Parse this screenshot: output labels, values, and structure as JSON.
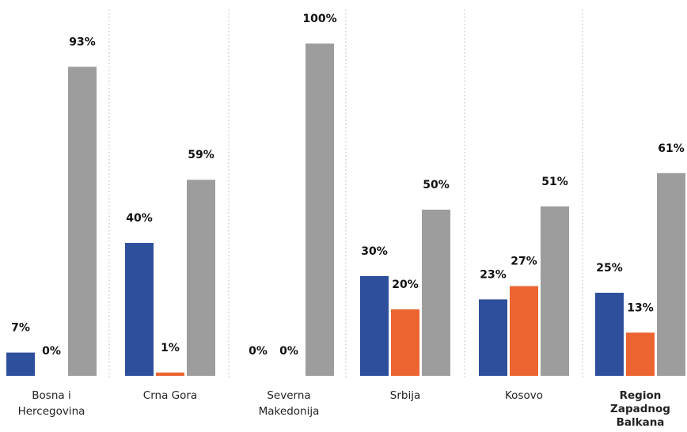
{
  "chart_data": {
    "type": "bar",
    "categories": [
      [
        "Bosna i",
        "Hercegovina"
      ],
      [
        "Crna Gora"
      ],
      [
        "Severna",
        "Makedonija"
      ],
      [
        "Srbija"
      ],
      [
        "Kosovo"
      ],
      [
        "Region",
        "Zapadnog",
        "Balkana"
      ]
    ],
    "category_bold": [
      false,
      false,
      false,
      false,
      false,
      true
    ],
    "series": [
      {
        "values": [
          7,
          40,
          0,
          30,
          23,
          25
        ],
        "color": "#2e4f9c"
      },
      {
        "values": [
          0,
          1,
          0,
          20,
          27,
          13
        ],
        "color": "#ec6530"
      },
      {
        "values": [
          93,
          59,
          100,
          50,
          51,
          61
        ],
        "color": "#9d9d9d"
      }
    ],
    "value_suffix": "%",
    "ylim": [
      0,
      100
    ],
    "grid": false,
    "separators": "dotted-vertical"
  }
}
